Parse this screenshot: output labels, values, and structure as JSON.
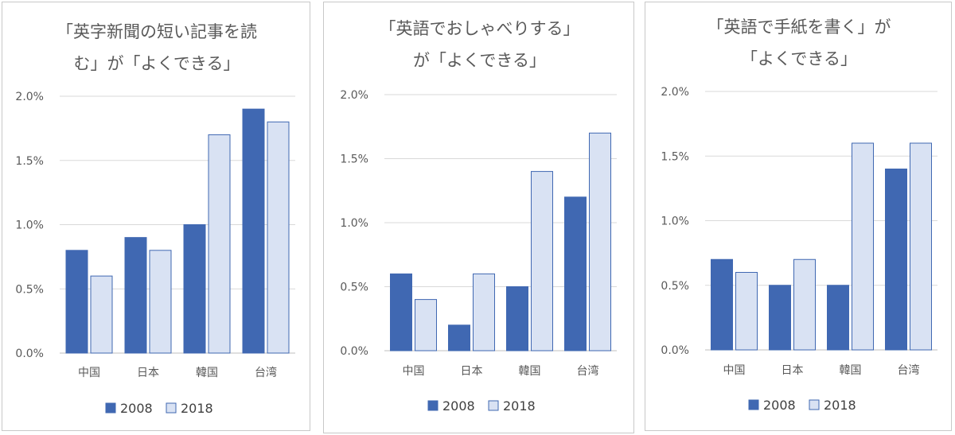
{
  "colors": {
    "series_2008": "#4068b2",
    "series_2018": "#d9e2f3",
    "series_2018_border": "#4068b2",
    "text": "#595959",
    "grid": "#d9d9d9"
  },
  "chart_data": [
    {
      "type": "bar",
      "title": "「英字新聞の短い記事を読む」が「よくできる」",
      "title_lines": [
        "「英字新聞の短い記事を読",
        "む」が「よくできる」"
      ],
      "categories": [
        "中国",
        "日本",
        "韓国",
        "台湾"
      ],
      "series": [
        {
          "name": "2008",
          "values": [
            0.8,
            0.9,
            1.0,
            1.9
          ]
        },
        {
          "name": "2018",
          "values": [
            0.6,
            0.8,
            1.7,
            1.8
          ]
        }
      ],
      "yticks": [
        "0.0%",
        "0.5%",
        "1.0%",
        "1.5%",
        "2.0%"
      ],
      "ylim": [
        0,
        2.0
      ],
      "unit": "%",
      "legend": "bottom",
      "grid": true
    },
    {
      "type": "bar",
      "title": "「英語でおしゃべりする」が「よくできる」",
      "title_lines": [
        "「英語でおしゃべりする」",
        "が「よくできる」"
      ],
      "categories": [
        "中国",
        "日本",
        "韓国",
        "台湾"
      ],
      "series": [
        {
          "name": "2008",
          "values": [
            0.6,
            0.2,
            0.5,
            1.2
          ]
        },
        {
          "name": "2018",
          "values": [
            0.4,
            0.6,
            1.4,
            1.7
          ]
        }
      ],
      "yticks": [
        "0.0%",
        "0.5%",
        "1.0%",
        "1.5%",
        "2.0%"
      ],
      "ylim": [
        0,
        2.0
      ],
      "unit": "%",
      "legend": "bottom",
      "grid": true
    },
    {
      "type": "bar",
      "title": "「英語で手紙を書く」が「よくできる」",
      "title_lines": [
        "「英語で手紙を書く」が",
        "「よくできる」"
      ],
      "categories": [
        "中国",
        "日本",
        "韓国",
        "台湾"
      ],
      "series": [
        {
          "name": "2008",
          "values": [
            0.7,
            0.5,
            0.5,
            1.4
          ]
        },
        {
          "name": "2018",
          "values": [
            0.6,
            0.7,
            1.6,
            1.6
          ]
        }
      ],
      "yticks": [
        "0.0%",
        "0.5%",
        "1.0%",
        "1.5%",
        "2.0%"
      ],
      "ylim": [
        0,
        2.0
      ],
      "unit": "%",
      "legend": "bottom",
      "grid": true
    }
  ]
}
